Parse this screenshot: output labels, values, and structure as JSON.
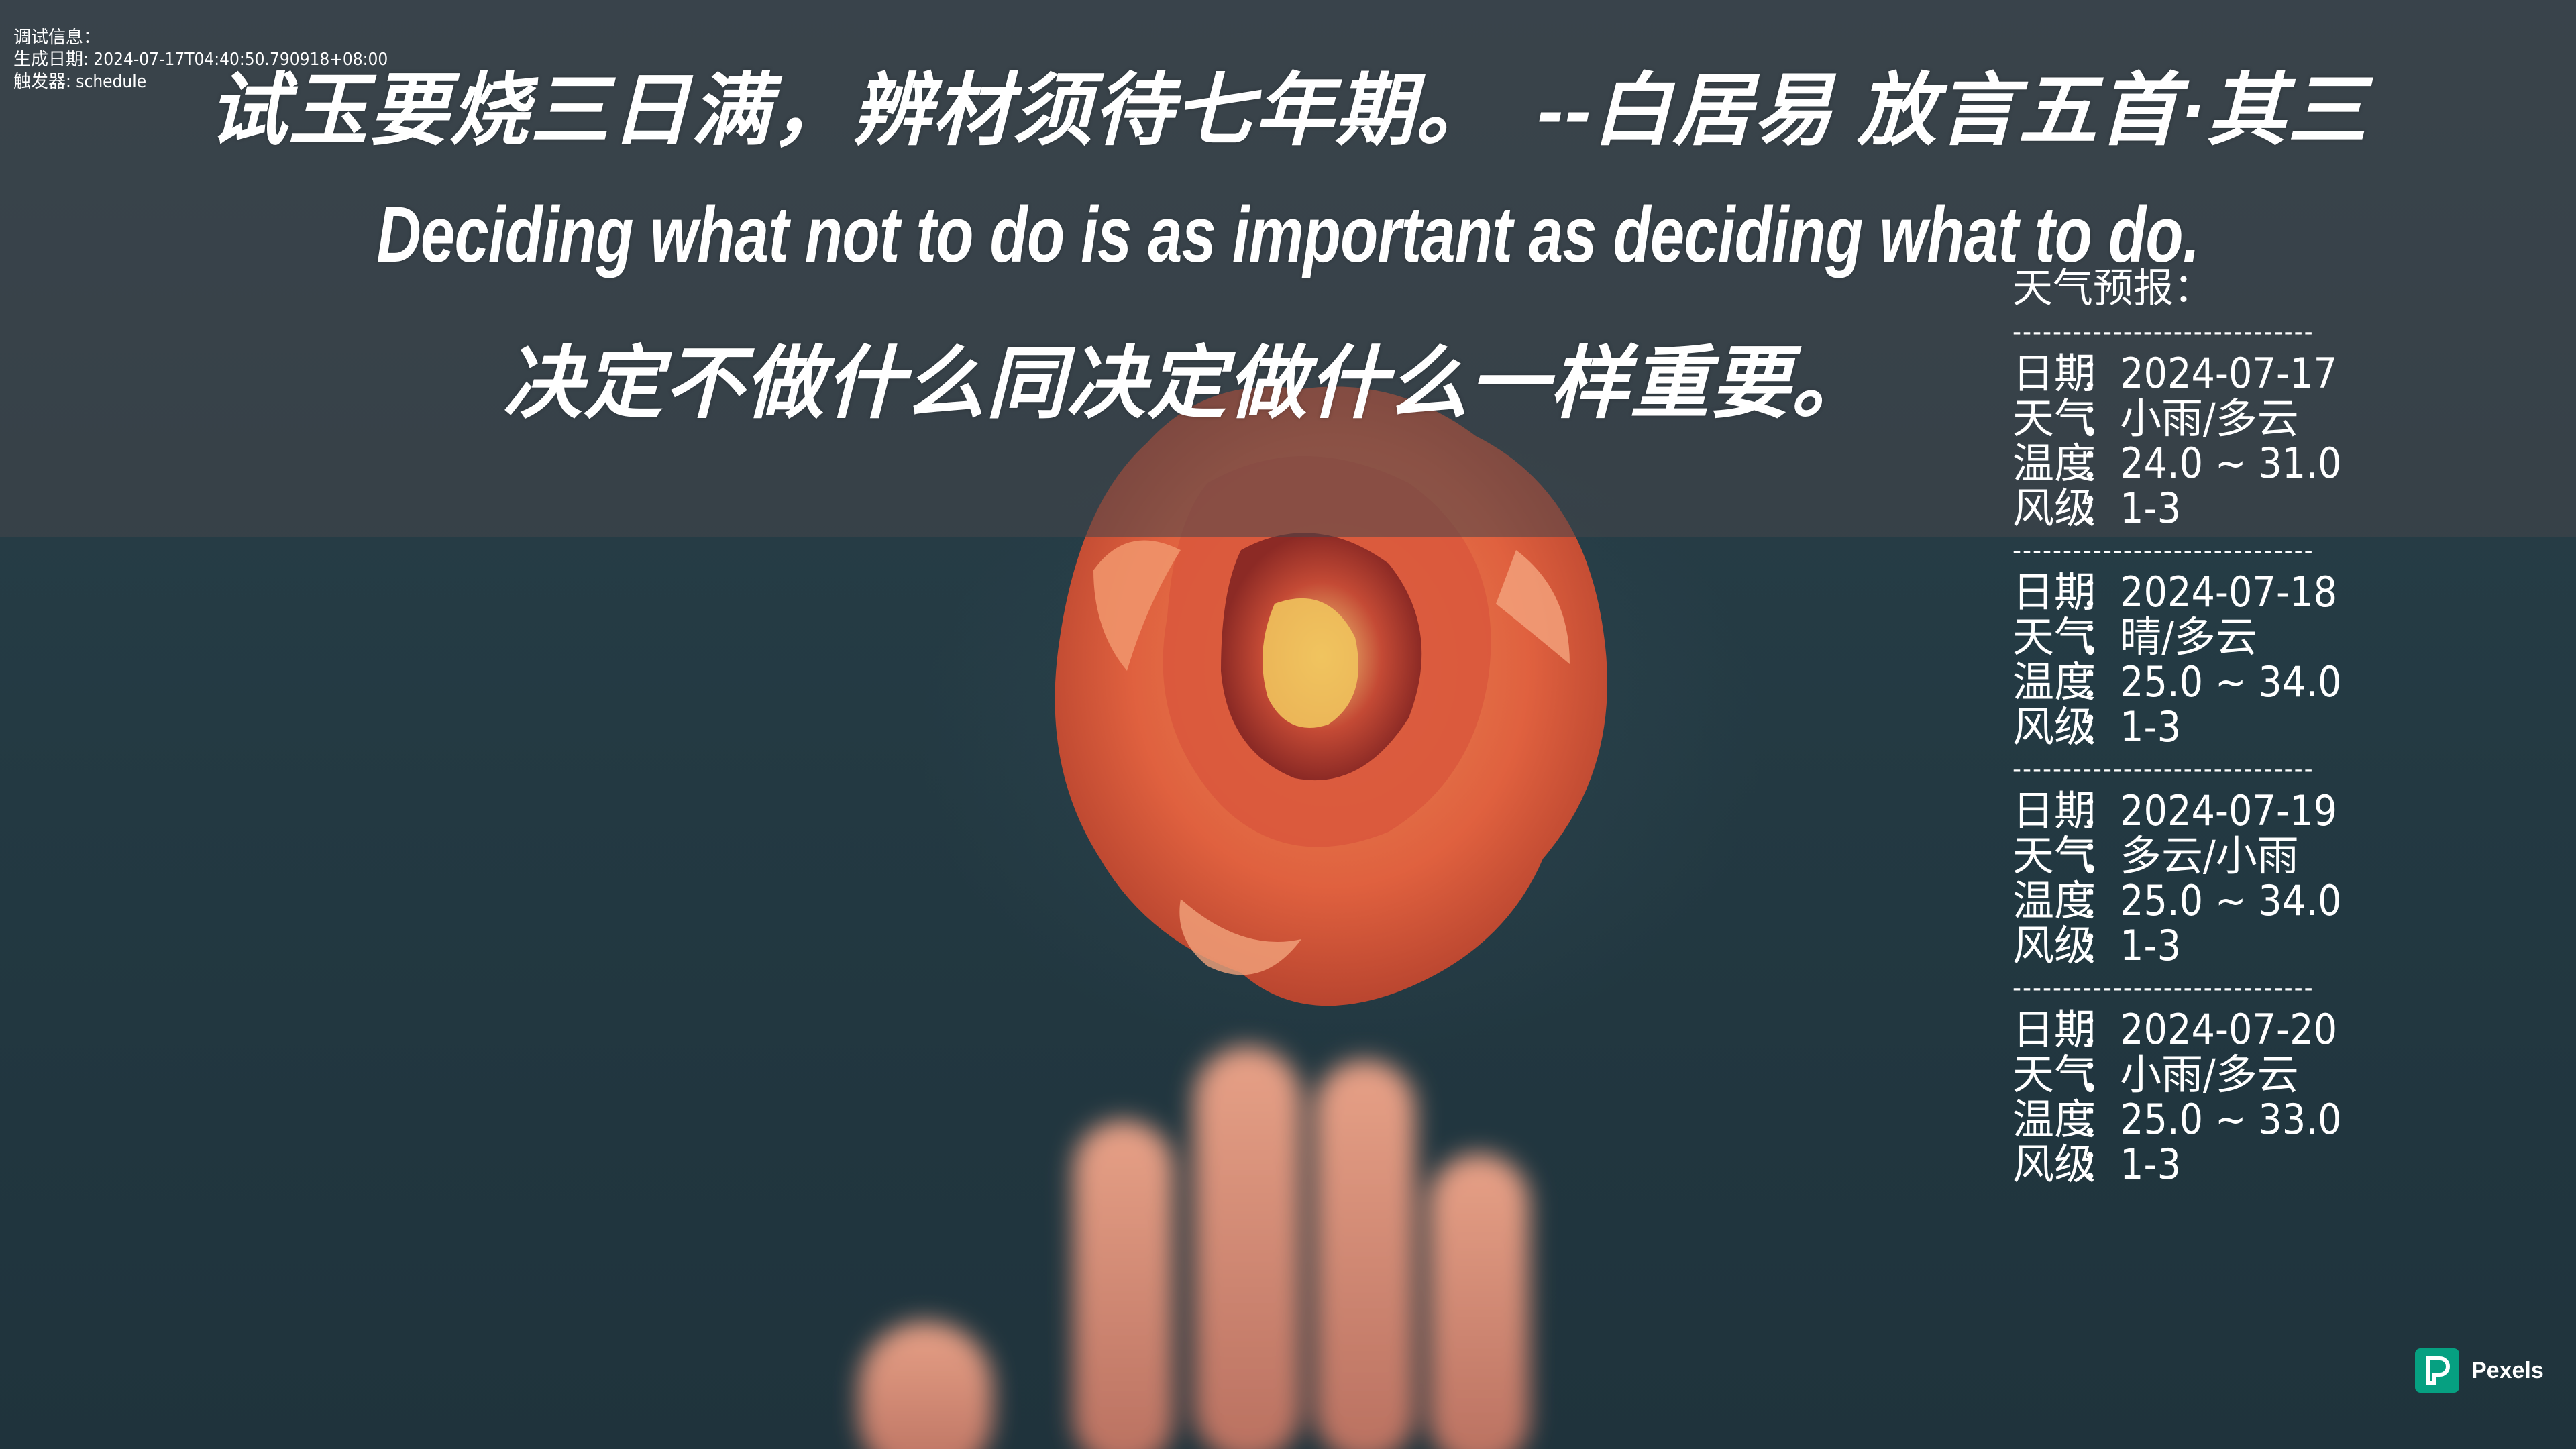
{
  "debug": {
    "title": "调试信息：",
    "generated": "生成日期: 2024-07-17T04:40:50.790918+08:00",
    "trigger": "触发器: schedule"
  },
  "quotes": {
    "line1": "试玉要烧三日满，辨材须待七年期。　--白居易 放言五首·其三",
    "line2": "Deciding what not to do is as important as deciding what to do.",
    "line3": "决定不做什么同决定做什么一样重要。"
  },
  "weather": {
    "title": "天气预报：",
    "separator": "------------------------------",
    "labels": {
      "date": "日期",
      "weather": "天气",
      "temp": "温度",
      "wind": "风级",
      "colon": "："
    },
    "days": [
      {
        "date": "2024-07-17",
        "weather": "小雨/多云",
        "temp": "24.0 ~ 31.0",
        "wind": "1-3"
      },
      {
        "date": "2024-07-18",
        "weather": "晴/多云",
        "temp": "25.0 ~ 34.0",
        "wind": "1-3"
      },
      {
        "date": "2024-07-19",
        "weather": "多云/小雨",
        "temp": "25.0 ~ 34.0",
        "wind": "1-3"
      },
      {
        "date": "2024-07-20",
        "weather": "小雨/多云",
        "temp": "25.0 ~ 33.0",
        "wind": "1-3"
      }
    ]
  },
  "badge": {
    "name": "Pexels",
    "icon": "pexels-logo-icon",
    "color": "#06a081"
  },
  "colors": {
    "rose": "#e8704a",
    "background": "#243a44"
  }
}
